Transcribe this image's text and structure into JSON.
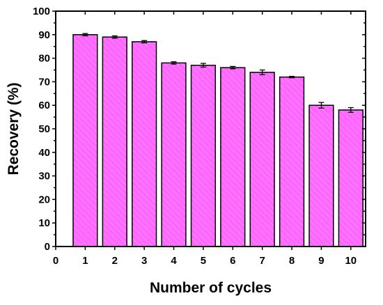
{
  "chart_data": {
    "type": "bar",
    "title": "",
    "xlabel": "Number of cycles",
    "ylabel": "Recovery (%)",
    "categories": [
      1,
      2,
      3,
      4,
      5,
      6,
      7,
      8,
      9,
      10
    ],
    "values": [
      90,
      89,
      87,
      78,
      77,
      76,
      74,
      72,
      60,
      58
    ],
    "errors": [
      0.5,
      0.5,
      0.5,
      0.5,
      0.8,
      0.5,
      1.0,
      0.3,
      1.2,
      1.0
    ],
    "xlim": [
      0,
      10.5
    ],
    "ylim": [
      0,
      100
    ],
    "x_ticks": [
      0,
      1,
      2,
      3,
      4,
      5,
      6,
      7,
      8,
      9,
      10
    ],
    "y_ticks": [
      0,
      10,
      20,
      30,
      40,
      50,
      60,
      70,
      80,
      90,
      100
    ],
    "grid": false,
    "legend": "none",
    "bar_fill": "#ff66ff",
    "bar_hatch": "#ff9cff",
    "bar_edge": "#000000"
  }
}
